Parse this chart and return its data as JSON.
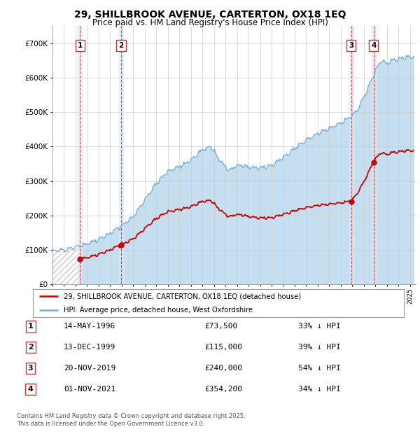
{
  "title": "29, SHILLBROOK AVENUE, CARTERTON, OX18 1EQ",
  "subtitle": "Price paid vs. HM Land Registry's House Price Index (HPI)",
  "footer": "Contains HM Land Registry data © Crown copyright and database right 2025.\nThis data is licensed under the Open Government Licence v3.0.",
  "legend_line1": "29, SHILLBROOK AVENUE, CARTERTON, OX18 1EQ (detached house)",
  "legend_line2": "HPI: Average price, detached house, West Oxfordshire",
  "transactions": [
    {
      "num": 1,
      "date": "14-MAY-1996",
      "price": 73500,
      "pct": "33% ↓ HPI"
    },
    {
      "num": 2,
      "date": "13-DEC-1999",
      "price": 115000,
      "pct": "39% ↓ HPI"
    },
    {
      "num": 3,
      "date": "20-NOV-2019",
      "price": 240000,
      "pct": "54% ↓ HPI"
    },
    {
      "num": 4,
      "date": "01-NOV-2021",
      "price": 354200,
      "pct": "34% ↓ HPI"
    }
  ],
  "transaction_years": [
    1996.37,
    1999.95,
    2019.89,
    2021.84
  ],
  "transaction_prices": [
    73500,
    115000,
    240000,
    354200
  ],
  "red_color": "#cc0000",
  "blue_color": "#7bafd4",
  "blue_fill": "#c5dff0",
  "vline_color": "#cc3333",
  "shade_color": "#dce8f5",
  "ylim": [
    0,
    750000
  ],
  "yticks": [
    0,
    100000,
    200000,
    300000,
    400000,
    500000,
    600000,
    700000
  ],
  "background_color": "#ffffff",
  "hpi_keypoints": [
    [
      1994.0,
      95000
    ],
    [
      1995.0,
      100000
    ],
    [
      1996.0,
      108000
    ],
    [
      1997.0,
      118000
    ],
    [
      1998.0,
      130000
    ],
    [
      1999.0,
      148000
    ],
    [
      2000.0,
      170000
    ],
    [
      2001.0,
      196000
    ],
    [
      2002.0,
      245000
    ],
    [
      2003.0,
      292000
    ],
    [
      2004.0,
      328000
    ],
    [
      2005.0,
      342000
    ],
    [
      2006.0,
      360000
    ],
    [
      2007.0,
      390000
    ],
    [
      2007.7,
      400000
    ],
    [
      2008.5,
      360000
    ],
    [
      2009.3,
      330000
    ],
    [
      2010.0,
      345000
    ],
    [
      2011.0,
      340000
    ],
    [
      2012.0,
      338000
    ],
    [
      2013.0,
      345000
    ],
    [
      2014.0,
      368000
    ],
    [
      2015.0,
      395000
    ],
    [
      2016.0,
      418000
    ],
    [
      2017.0,
      438000
    ],
    [
      2018.0,
      452000
    ],
    [
      2019.0,
      468000
    ],
    [
      2020.0,
      490000
    ],
    [
      2020.5,
      510000
    ],
    [
      2021.0,
      545000
    ],
    [
      2021.5,
      580000
    ],
    [
      2022.0,
      620000
    ],
    [
      2022.5,
      650000
    ],
    [
      2023.0,
      640000
    ],
    [
      2023.5,
      650000
    ],
    [
      2024.0,
      655000
    ],
    [
      2024.5,
      658000
    ],
    [
      2025.0,
      660000
    ]
  ]
}
